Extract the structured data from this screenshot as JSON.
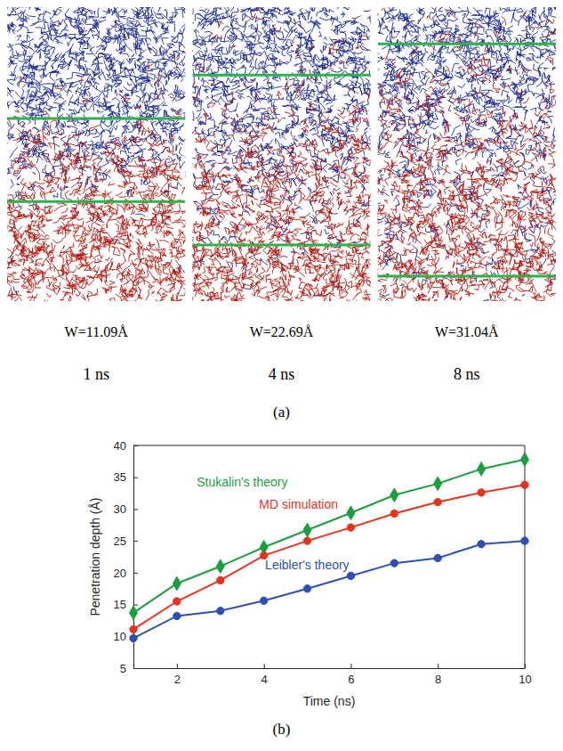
{
  "snapshots": {
    "label": "(a)",
    "panels": [
      {
        "width_label": "W=11.09Å",
        "width": 11.09,
        "time_label": "1 ns"
      },
      {
        "width_label": "W=22.69Å",
        "width": 22.69,
        "time_label": "4 ns"
      },
      {
        "width_label": "W=31.04Å",
        "width": 31.04,
        "time_label": "8 ns"
      }
    ]
  },
  "chart_data": {
    "type": "line",
    "title": "(b)",
    "xlabel": "Time (ns)",
    "ylabel": "Penetration depth (Å)",
    "x": [
      1,
      2,
      3,
      4,
      5,
      6,
      7,
      8,
      9,
      10
    ],
    "xlim": [
      1,
      10
    ],
    "xticks": [
      2,
      4,
      6,
      8,
      10
    ],
    "ylim": [
      5,
      40
    ],
    "yticks": [
      5,
      10,
      15,
      20,
      25,
      30,
      35,
      40
    ],
    "series": [
      {
        "name": "Stukalin's theory",
        "color": "#1b9e3e",
        "marker": "diamond",
        "values": [
          13.7,
          18.3,
          21.0,
          24.0,
          26.7,
          29.4,
          32.2,
          34.0,
          36.3,
          37.8
        ]
      },
      {
        "name": "MD simulation",
        "color": "#e8321e",
        "marker": "circle",
        "values": [
          11.1,
          15.5,
          18.8,
          22.7,
          25.0,
          27.1,
          29.3,
          31.1,
          32.6,
          33.8
        ]
      },
      {
        "name": "Leibler's theory",
        "color": "#2e4fb3",
        "marker": "circle",
        "values": [
          9.7,
          13.2,
          14.0,
          15.6,
          17.5,
          19.5,
          21.5,
          22.3,
          24.5,
          25.0
        ]
      }
    ]
  }
}
